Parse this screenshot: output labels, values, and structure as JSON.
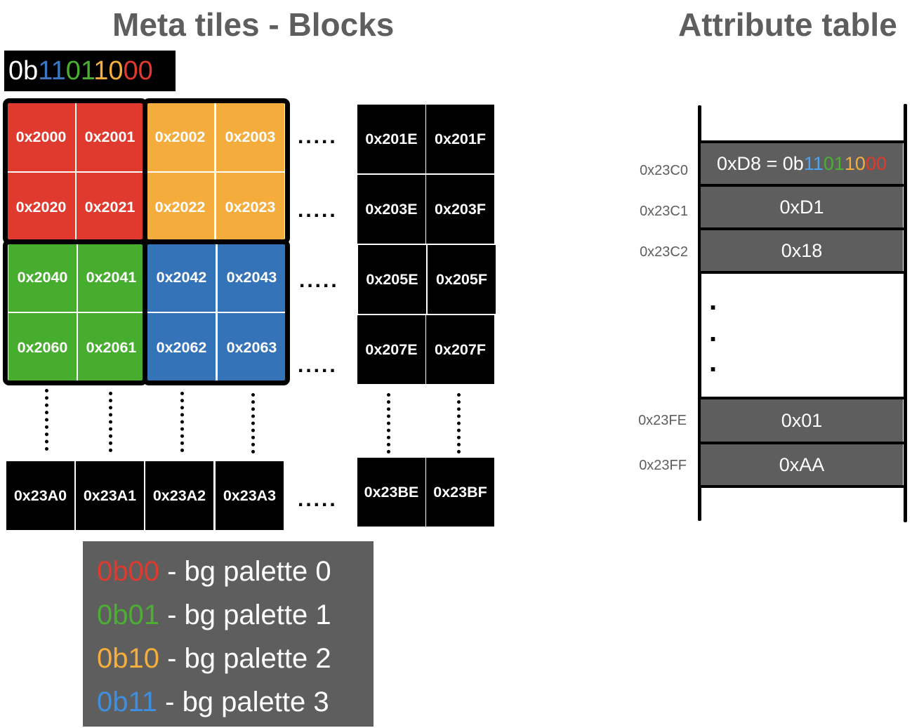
{
  "titles": {
    "left": "Meta tiles - Blocks",
    "right": "Attribute table"
  },
  "binary_header": {
    "prefix": "0b",
    "bits": [
      {
        "text": "11",
        "color": "#3a78c3"
      },
      {
        "text": "01",
        "color": "#4cae33"
      },
      {
        "text": "10",
        "color": "#f5ae3b"
      },
      {
        "text": "00",
        "color": "#e03a2e"
      }
    ]
  },
  "colors": {
    "red": "#e03a2e",
    "orange": "#f4ad3c",
    "green": "#47ad2f",
    "blue": "#3473b8",
    "gray": "#5e5e5e"
  },
  "tiles": {
    "t2000": "0x2000",
    "t2001": "0x2001",
    "t2002": "0x2002",
    "t2003": "0x2003",
    "t2020": "0x2020",
    "t2021": "0x2021",
    "t2022": "0x2022",
    "t2023": "0x2023",
    "t2040": "0x2040",
    "t2041": "0x2041",
    "t2042": "0x2042",
    "t2043": "0x2043",
    "t2060": "0x2060",
    "t2061": "0x2061",
    "t2062": "0x2062",
    "t2063": "0x2063",
    "t201E": "0x201E",
    "t201F": "0x201F",
    "t203E": "0x203E",
    "t203F": "0x203F",
    "t205E": "0x205E",
    "t205F": "0x205F",
    "t207E": "0x207E",
    "t207F": "0x207F",
    "t23A0": "0x23A0",
    "t23A1": "0x23A1",
    "t23A2": "0x23A2",
    "t23A3": "0x23A3",
    "t23BE": "0x23BE",
    "t23BF": "0x23BF"
  },
  "ellipsis": ".....",
  "legend": [
    {
      "code": "0b00",
      "color": "#e03a2e",
      "text": " - bg palette 0"
    },
    {
      "code": "0b01",
      "color": "#4cae33",
      "text": " - bg palette 1"
    },
    {
      "code": "0b10",
      "color": "#f5ae3b",
      "text": " - bg palette 2"
    },
    {
      "code": "0b11",
      "color": "#3f8fe0",
      "text": " - bg palette 3"
    }
  ],
  "attribute_table": {
    "rows": [
      {
        "address": "0x23C0",
        "value_prefix": "0xD8 = 0b"
      },
      {
        "address": "0x23C1",
        "value": "0xD1"
      },
      {
        "address": "0x23C2",
        "value": "0x18"
      },
      {
        "address": "0x23FE",
        "value": "0x01"
      },
      {
        "address": "0x23FF",
        "value": "0xAA"
      }
    ],
    "first_bits": [
      {
        "text": "11",
        "color": "#4da3ee"
      },
      {
        "text": "01",
        "color": "#4cae33"
      },
      {
        "text": "10",
        "color": "#f5ae3b"
      },
      {
        "text": "00",
        "color": "#e03a2e"
      }
    ],
    "gap_dot": "."
  }
}
